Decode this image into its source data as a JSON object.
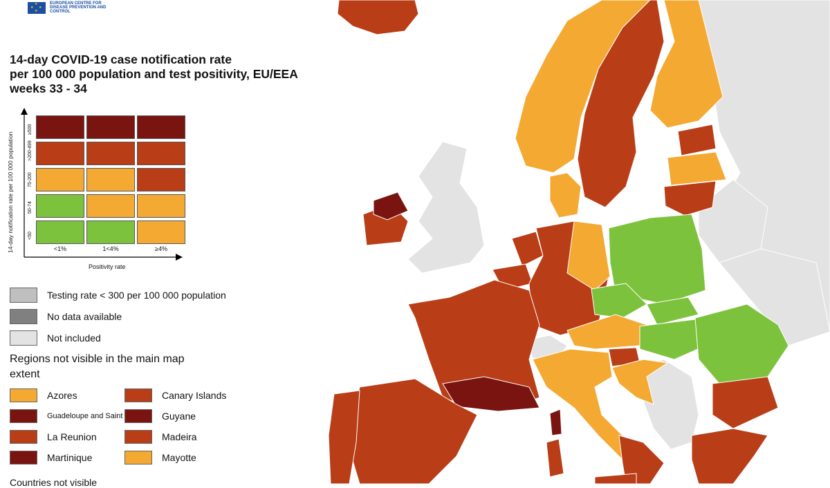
{
  "colors": {
    "dark_red": "#7a1411",
    "red": "#b93d17",
    "orange": "#f4a932",
    "green": "#7dc23d",
    "grey": "#bfbfbf",
    "dark_grey": "#808080",
    "light_grey": "#e3e3e3",
    "sea": "#ffffff"
  },
  "header": {
    "logo_text": "EUROPEAN CENTRE FOR DISEASE PREVENTION AND CONTROL",
    "title_line1": "14-day COVID-19 case notification rate",
    "title_line2": "per 100 000 population and test positivity, EU/EEA",
    "title_line3": "weeks 33 - 34"
  },
  "matrix": {
    "y_axis_title": "14-day notification rate per 100 000 population",
    "x_axis_title": "Positivity rate",
    "row_labels": [
      "≥500",
      ">200-499",
      "75-200",
      "50-74",
      "<50"
    ],
    "col_labels": [
      "<1%",
      "1<4%",
      "≥4%"
    ],
    "cells": [
      [
        "dark_red",
        "dark_red",
        "dark_red"
      ],
      [
        "red",
        "red",
        "red"
      ],
      [
        "orange",
        "orange",
        "red"
      ],
      [
        "green",
        "orange",
        "orange"
      ],
      [
        "green",
        "green",
        "orange"
      ]
    ]
  },
  "legend": {
    "testing": "Testing rate < 300 per 100 000 population",
    "no_data": "No data available",
    "not_included": "Not included",
    "regions_title": "Regions not visible in the main map extent",
    "cutoff_text": "Countries not visible"
  },
  "regions": [
    {
      "name": "Azores",
      "color": "orange"
    },
    {
      "name": "Canary Islands",
      "color": "red"
    },
    {
      "name": "Guadeloupe and Saint Martin",
      "color": "dark_red"
    },
    {
      "name": "Guyane",
      "color": "dark_red"
    },
    {
      "name": "La Reunion",
      "color": "red"
    },
    {
      "name": "Madeira",
      "color": "red"
    },
    {
      "name": "Martinique",
      "color": "dark_red"
    },
    {
      "name": "Mayotte",
      "color": "orange"
    }
  ],
  "map_regions": [
    {
      "name": "Iceland",
      "fill": "red"
    },
    {
      "name": "Norway",
      "fill": "orange"
    },
    {
      "name": "Sweden",
      "fill": "red"
    },
    {
      "name": "Finland",
      "fill": "orange"
    },
    {
      "name": "Estonia",
      "fill": "red"
    },
    {
      "name": "Latvia",
      "fill": "orange"
    },
    {
      "name": "Lithuania",
      "fill": "red"
    },
    {
      "name": "Denmark",
      "fill": "orange"
    },
    {
      "name": "Ireland",
      "fill": "red"
    },
    {
      "name": "Northern Ireland",
      "fill": "dark_red"
    },
    {
      "name": "United Kingdom",
      "fill": "light_grey"
    },
    {
      "name": "Netherlands",
      "fill": "red"
    },
    {
      "name": "Belgium",
      "fill": "red"
    },
    {
      "name": "Germany",
      "fill": "red"
    },
    {
      "name": "East Germany",
      "fill": "orange"
    },
    {
      "name": "Poland",
      "fill": "green"
    },
    {
      "name": "Czechia",
      "fill": "green"
    },
    {
      "name": "Slovakia",
      "fill": "green"
    },
    {
      "name": "Hungary",
      "fill": "green"
    },
    {
      "name": "Romania",
      "fill": "green"
    },
    {
      "name": "Austria",
      "fill": "orange"
    },
    {
      "name": "Switzerland",
      "fill": "light_grey"
    },
    {
      "name": "France",
      "fill": "red"
    },
    {
      "name": "Occitanie",
      "fill": "dark_red"
    },
    {
      "name": "Spain",
      "fill": "red"
    },
    {
      "name": "Portugal",
      "fill": "red"
    },
    {
      "name": "Italy North",
      "fill": "orange"
    },
    {
      "name": "Italy South",
      "fill": "red"
    },
    {
      "name": "Sardinia",
      "fill": "red"
    },
    {
      "name": "Corsica",
      "fill": "dark_red"
    },
    {
      "name": "Sicily",
      "fill": "red"
    },
    {
      "name": "Slovenia",
      "fill": "red"
    },
    {
      "name": "Croatia",
      "fill": "orange"
    },
    {
      "name": "Balkans",
      "fill": "light_grey"
    },
    {
      "name": "Bulgaria",
      "fill": "red"
    },
    {
      "name": "Greece",
      "fill": "red"
    },
    {
      "name": "Belarus",
      "fill": "light_grey"
    },
    {
      "name": "Ukraine",
      "fill": "light_grey"
    },
    {
      "name": "Russia",
      "fill": "light_grey"
    }
  ]
}
